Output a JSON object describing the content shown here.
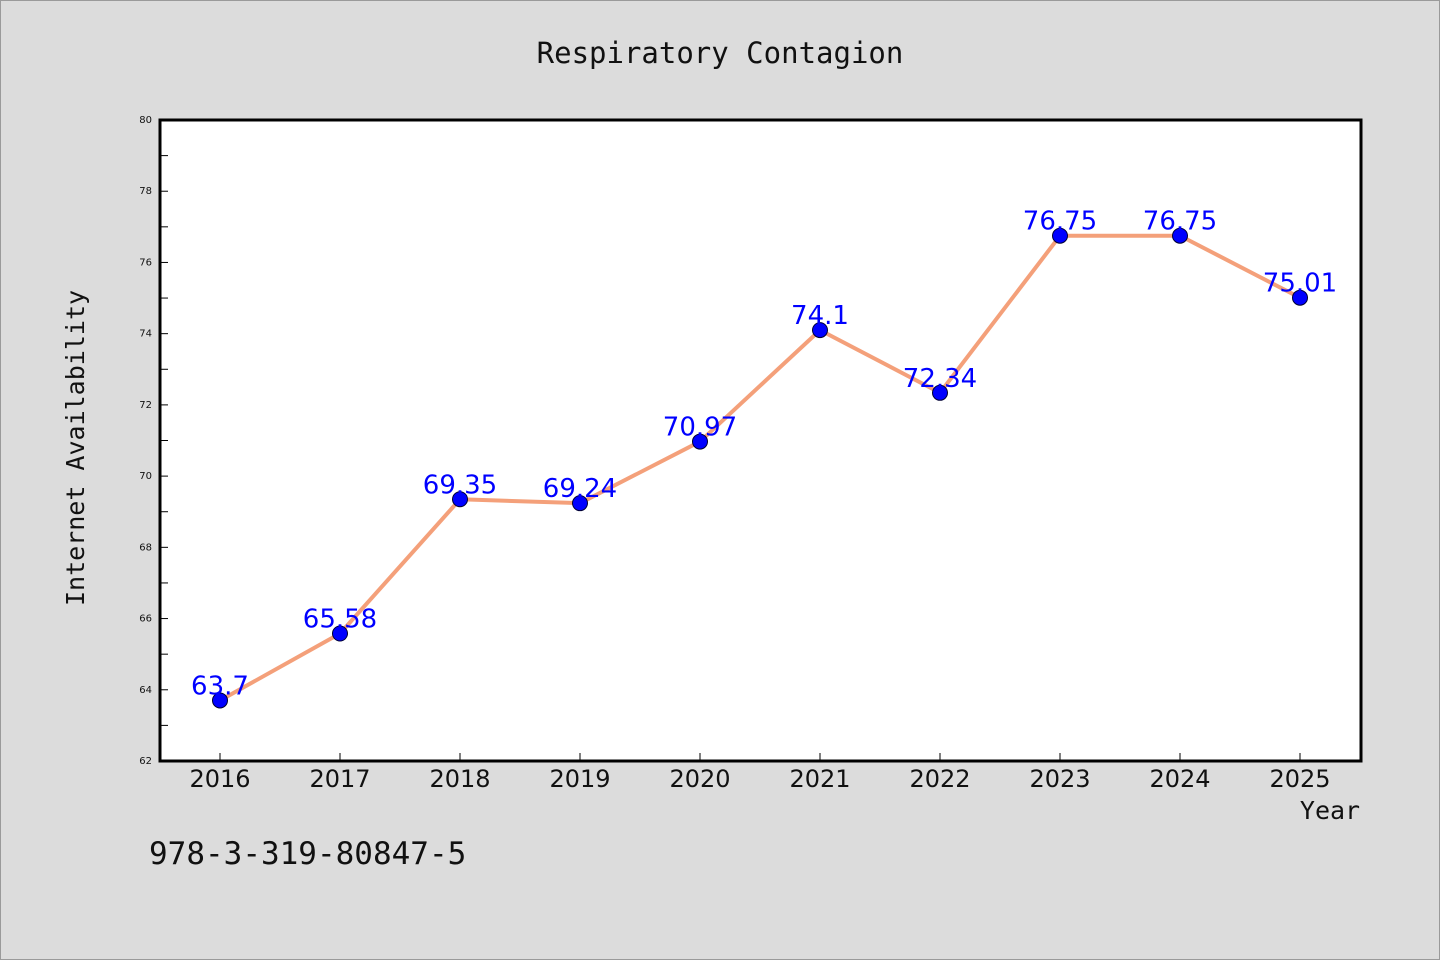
{
  "chart_data": {
    "type": "line",
    "title": "Respiratory Contagion",
    "xlabel": "Year",
    "ylabel": "Internet Availability",
    "categories": [
      "2016",
      "2017",
      "2018",
      "2019",
      "2020",
      "2021",
      "2022",
      "2023",
      "2024",
      "2025"
    ],
    "values": [
      63.7,
      65.58,
      69.35,
      69.24,
      70.97,
      74.1,
      72.34,
      76.75,
      76.75,
      75.01
    ],
    "data_labels": [
      "63.7",
      "65.58",
      "69.35",
      "69.24",
      "70.97",
      "74.1",
      "72.34",
      "76.75",
      "76.75",
      "75.01"
    ],
    "ylim": [
      62,
      80
    ],
    "yticks": [
      "62",
      "64",
      "66",
      "68",
      "70",
      "72",
      "74",
      "76",
      "78",
      "80"
    ],
    "grid": false,
    "line_color": "#f4a07a",
    "marker_color": "#0000ff",
    "label_color": "#0000ff"
  },
  "footnote": "978-3-319-80847-5",
  "colors": {
    "background": "#dcdcdc",
    "plot_background": "#ffffff"
  }
}
